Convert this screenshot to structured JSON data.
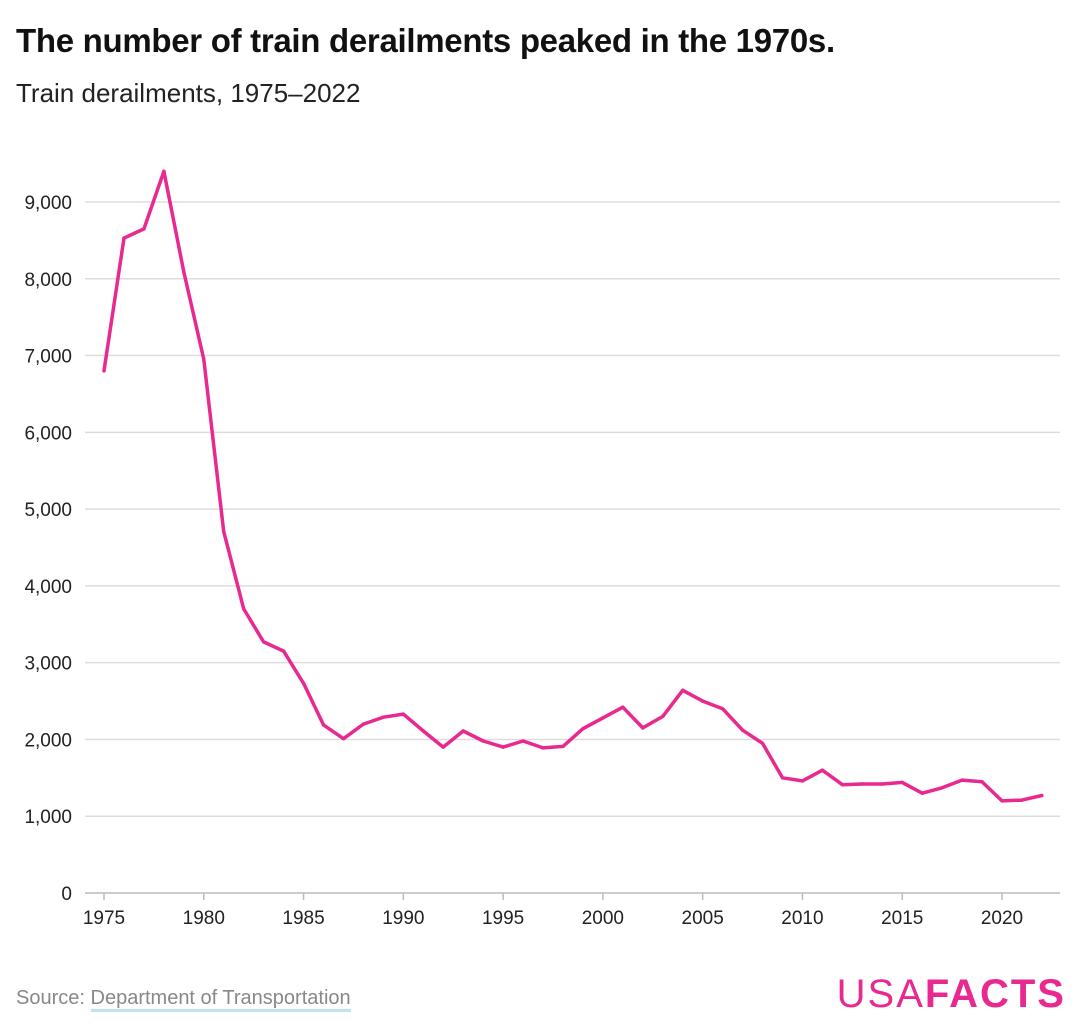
{
  "title": "The number of train derailments peaked in the 1970s.",
  "subtitle": "Train derailments, 1975–2022",
  "source": {
    "label": "Source:",
    "link": "Department of Transportation"
  },
  "logo": {
    "part1": "USA",
    "part2": "FACTS"
  },
  "colors": {
    "line": "#e8298f",
    "grid": "#dddddd"
  },
  "chart_data": {
    "type": "line",
    "title": "The number of train derailments peaked in the 1970s.",
    "subtitle": "Train derailments, 1975–2022",
    "xlim": [
      1975,
      2022
    ],
    "ylim": [
      0,
      9000
    ],
    "grid": true,
    "yticks": [
      0,
      1000,
      2000,
      3000,
      4000,
      5000,
      6000,
      7000,
      8000,
      9000
    ],
    "ytick_labels": [
      "0",
      "1,000",
      "2,000",
      "3,000",
      "4,000",
      "5,000",
      "6,000",
      "7,000",
      "8,000",
      "9,000"
    ],
    "xticks": [
      1975,
      1980,
      1985,
      1990,
      1995,
      2000,
      2005,
      2010,
      2015,
      2020
    ],
    "xtick_labels": [
      "1975",
      "1980",
      "1985",
      "1990",
      "1995",
      "2000",
      "2005",
      "2010",
      "2015",
      "2020"
    ],
    "x": [
      1975,
      1976,
      1977,
      1978,
      1979,
      1980,
      1981,
      1982,
      1983,
      1984,
      1985,
      1986,
      1987,
      1988,
      1989,
      1990,
      1991,
      1992,
      1993,
      1994,
      1995,
      1996,
      1997,
      1998,
      1999,
      2000,
      2001,
      2002,
      2003,
      2004,
      2005,
      2006,
      2007,
      2008,
      2009,
      2010,
      2011,
      2012,
      2013,
      2014,
      2015,
      2016,
      2017,
      2018,
      2019,
      2020,
      2021,
      2022
    ],
    "y": [
      6800,
      8530,
      8650,
      9400,
      8090,
      6950,
      4710,
      3700,
      3270,
      3150,
      2730,
      2190,
      2010,
      2200,
      2290,
      2330,
      2110,
      1900,
      2110,
      1980,
      1900,
      1980,
      1890,
      1910,
      2140,
      2280,
      2420,
      2150,
      2300,
      2640,
      2500,
      2400,
      2120,
      1950,
      1500,
      1460,
      1600,
      1410,
      1420,
      1420,
      1440,
      1300,
      1370,
      1470,
      1450,
      1200,
      1210,
      1270
    ]
  }
}
